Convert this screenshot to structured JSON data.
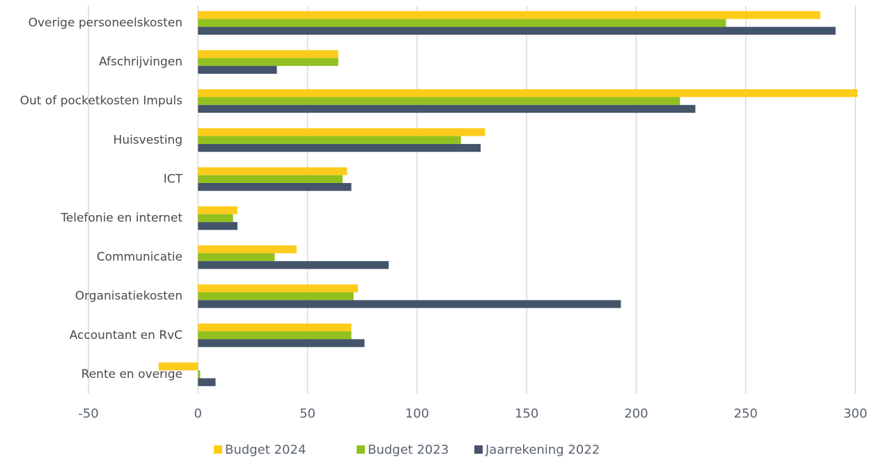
{
  "chart_data": {
    "type": "bar",
    "orientation": "horizontal",
    "categories": [
      "Overige personeelskosten",
      "Afschrijvingen",
      "Out of pocketkosten Impuls",
      "Huisvesting",
      "ICT",
      "Telefonie en internet",
      "Communicatie",
      "Organisatiekosten",
      "Accountant en RvC",
      "Rente en overige"
    ],
    "series": [
      {
        "name": "Budget 2024",
        "color": "#fdcb1b",
        "values": [
          284,
          64,
          301,
          131,
          68,
          18,
          45,
          73,
          70,
          -18
        ]
      },
      {
        "name": "Budget 2023",
        "color": "#92c01f",
        "values": [
          241,
          64,
          220,
          120,
          66,
          16,
          35,
          71,
          70,
          1
        ]
      },
      {
        "name": "Jaarrekening 2022",
        "color": "#44546a",
        "values": [
          291,
          36,
          227,
          129,
          70,
          18,
          87,
          193,
          76,
          8
        ]
      }
    ],
    "xlim": [
      -50,
      300
    ],
    "xticks": [
      -50,
      0,
      50,
      100,
      150,
      200,
      250,
      300
    ],
    "grid": true,
    "legend": "bottom"
  }
}
